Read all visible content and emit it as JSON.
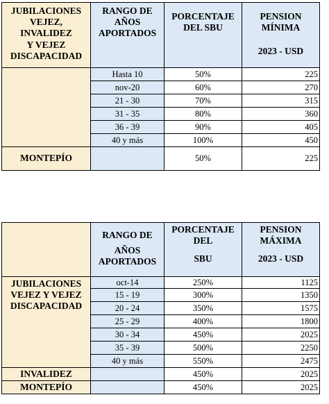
{
  "table1": {
    "header": {
      "category": [
        "JUBILACIONES",
        "VEJEZ,",
        "INVALIDEZ",
        "Y VEJEZ",
        "DISCAPACIDAD"
      ],
      "range": [
        "RANGO DE",
        "AÑOS",
        "APORTADOS"
      ],
      "percent": [
        "PORCENTAJE",
        "DEL SBU"
      ],
      "pension": [
        "PENSION",
        "MÍNIMA",
        "2023 - USD"
      ]
    },
    "rows": [
      {
        "range": "Hasta 10",
        "percent": "50%",
        "amount": "225"
      },
      {
        "range": "nov-20",
        "percent": "60%",
        "amount": "270"
      },
      {
        "range": "21 - 30",
        "percent": "70%",
        "amount": "315"
      },
      {
        "range": "31 - 35",
        "percent": "80%",
        "amount": "360"
      },
      {
        "range": "36 - 39",
        "percent": "90%",
        "amount": "405"
      },
      {
        "range": "40 y más",
        "percent": "100%",
        "amount": "450"
      }
    ],
    "montepio": {
      "label": "MONTEPÍO",
      "percent": "50%",
      "amount": "225"
    }
  },
  "table2": {
    "header": {
      "range": [
        "RANGO DE",
        "AÑOS",
        "APORTADOS"
      ],
      "percent": [
        "PORCENTAJE",
        "DEL",
        "SBU"
      ],
      "pension": [
        "PENSION",
        "MÁXIMA",
        "2023 - USD"
      ]
    },
    "category": [
      "JUBILACIONES",
      "VEJEZ Y VEJEZ",
      "DISCAPACIDAD"
    ],
    "rows": [
      {
        "range": "oct-14",
        "percent": "250%",
        "amount": "1125"
      },
      {
        "range": "15 - 19",
        "percent": "300%",
        "amount": "1350"
      },
      {
        "range": "20 - 24",
        "percent": "350%",
        "amount": "1575"
      },
      {
        "range": "25 - 29",
        "percent": "400%",
        "amount": "1800"
      },
      {
        "range": "30 - 34",
        "percent": "450%",
        "amount": "2025"
      },
      {
        "range": "35 - 39",
        "percent": "500%",
        "amount": "2250"
      },
      {
        "range": "40 y más",
        "percent": "550%",
        "amount": "2475"
      }
    ],
    "invalidez": {
      "label": "INVALIDEZ",
      "percent": "450%",
      "amount": "2025"
    },
    "montepio": {
      "label": "MONTEPÍO",
      "percent": "450%",
      "amount": "2025"
    }
  }
}
